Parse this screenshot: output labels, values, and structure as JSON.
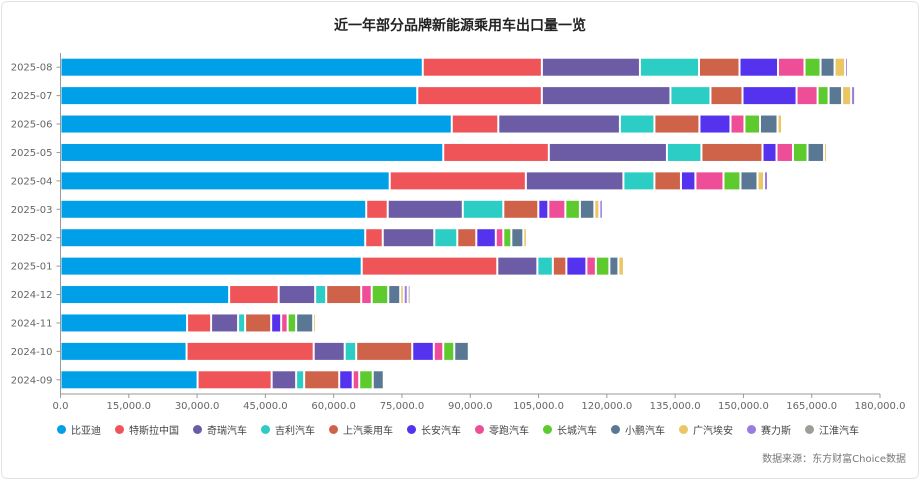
{
  "chart_data": {
    "type": "bar",
    "orientation": "horizontal",
    "stacked": true,
    "title": "近一年部分品牌新能源乘用车出口量一览",
    "categories": [
      "2025-08",
      "2025-07",
      "2025-06",
      "2025-05",
      "2025-04",
      "2025-03",
      "2025-02",
      "2025-01",
      "2024-12",
      "2024-11",
      "2024-10",
      "2024-09"
    ],
    "xlim": [
      0,
      180000
    ],
    "x_ticks": [
      "0.0",
      "15,000.0",
      "30,000.0",
      "45,000.0",
      "60,000.0",
      "75,000.0",
      "90,000.0",
      "105,000.0",
      "120,000.0",
      "135,000.0",
      "150,000.0",
      "165,000.0",
      "180,000.0"
    ],
    "grid": false,
    "legend_position": "bottom",
    "series": [
      {
        "name": "比亚迪",
        "color": "#00A0E9",
        "values": [
          79570,
          78360,
          85940,
          84070,
          72310,
          67150,
          66930,
          66160,
          37040,
          27800,
          27690,
          30110
        ]
      },
      {
        "name": "特斯拉中国",
        "color": "#EF5558",
        "values": [
          26160,
          27360,
          10220,
          23190,
          29900,
          4720,
          3850,
          29780,
          10880,
          5280,
          27920,
          16270
        ]
      },
      {
        "name": "奇瑞汽车",
        "color": "#6B5CA5",
        "values": [
          21540,
          28250,
          26710,
          25940,
          21430,
          16490,
          11320,
          8800,
          8020,
          5930,
          6810,
          5380
        ]
      },
      {
        "name": "吉利汽车",
        "color": "#2CCDC4",
        "values": [
          12970,
          8790,
          7580,
          7580,
          6810,
          8900,
          5050,
          3400,
          2420,
          1540,
          2530,
          1760
        ]
      },
      {
        "name": "上汽乘用车",
        "color": "#CF634A",
        "values": [
          8900,
          7040,
          9890,
          13410,
          5830,
          7690,
          4180,
          2970,
          7690,
          5720,
          12310,
          7700
        ]
      },
      {
        "name": "长安汽车",
        "color": "#5533EE",
        "values": [
          8460,
          11870,
          6820,
          3080,
          3180,
          2200,
          4280,
          4400,
          0,
          2200,
          4730,
          2960
        ]
      },
      {
        "name": "零跑汽车",
        "color": "#EE4E97",
        "values": [
          5820,
          4620,
          3070,
          3620,
          6160,
          3740,
          1650,
          2080,
          2310,
          1420,
          2080,
          1430
        ]
      },
      {
        "name": "长城汽车",
        "color": "#5DCA2E",
        "values": [
          3520,
          2420,
          3410,
          3190,
          3730,
          3190,
          1760,
          2970,
          3630,
          1870,
          2420,
          2970
        ]
      },
      {
        "name": "小鹏汽车",
        "color": "#5A7894",
        "values": [
          3080,
          2960,
          3850,
          3630,
          3740,
          3180,
          2640,
          1980,
          2630,
          3740,
          3190,
          2420
        ]
      },
      {
        "name": "广汽埃安",
        "color": "#EBC665",
        "values": [
          2310,
          1980,
          990,
          660,
          1430,
          1100,
          770,
          1210,
          770,
          550,
          0,
          0
        ]
      },
      {
        "name": "赛力斯",
        "color": "#9A7BE4",
        "values": [
          440,
          880,
          0,
          0,
          880,
          770,
          0,
          0,
          880,
          0,
          0,
          0
        ]
      },
      {
        "name": "江淮汽车",
        "color": "#A09C98",
        "values": [
          0,
          0,
          0,
          0,
          0,
          0,
          0,
          0,
          440,
          0,
          0,
          0
        ]
      }
    ]
  },
  "source": "数据来源：东方财富Choice数据"
}
